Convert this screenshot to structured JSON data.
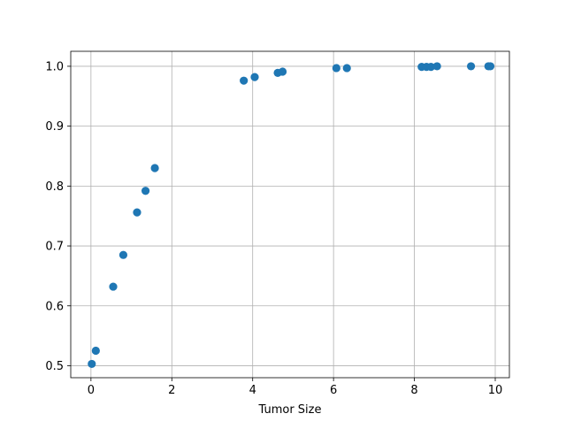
{
  "colors": {
    "marker": "#1f77b4",
    "grid": "#b0b0b0",
    "background": "#ffffff"
  },
  "chart_data": {
    "type": "scatter",
    "title": "",
    "xlabel": "Tumor Size",
    "ylabel": "",
    "xlim": [
      -0.5,
      10.35
    ],
    "ylim": [
      0.48,
      1.025
    ],
    "xticks": [
      0,
      2,
      4,
      6,
      8,
      10
    ],
    "yticks": [
      0.5,
      0.6,
      0.7,
      0.8,
      0.9,
      1.0
    ],
    "xtick_labels": [
      "0",
      "2",
      "4",
      "6",
      "8",
      "10"
    ],
    "ytick_labels": [
      "0.5",
      "0.6",
      "0.7",
      "0.8",
      "0.9",
      "1.0"
    ],
    "grid": true,
    "legend": "none",
    "series": [
      {
        "points": [
          {
            "x": 0.02,
            "y": 0.503
          },
          {
            "x": 0.12,
            "y": 0.525
          },
          {
            "x": 0.55,
            "y": 0.632
          },
          {
            "x": 0.8,
            "y": 0.685
          },
          {
            "x": 1.14,
            "y": 0.756
          },
          {
            "x": 1.35,
            "y": 0.792
          },
          {
            "x": 1.58,
            "y": 0.83
          },
          {
            "x": 3.78,
            "y": 0.976
          },
          {
            "x": 4.05,
            "y": 0.982
          },
          {
            "x": 4.62,
            "y": 0.989
          },
          {
            "x": 4.74,
            "y": 0.991
          },
          {
            "x": 6.07,
            "y": 0.997
          },
          {
            "x": 6.33,
            "y": 0.997
          },
          {
            "x": 8.18,
            "y": 0.999
          },
          {
            "x": 8.3,
            "y": 0.999
          },
          {
            "x": 8.41,
            "y": 0.999
          },
          {
            "x": 8.56,
            "y": 1.0
          },
          {
            "x": 9.4,
            "y": 1.0
          },
          {
            "x": 9.83,
            "y": 1.0
          },
          {
            "x": 9.88,
            "y": 1.0
          }
        ]
      }
    ]
  }
}
